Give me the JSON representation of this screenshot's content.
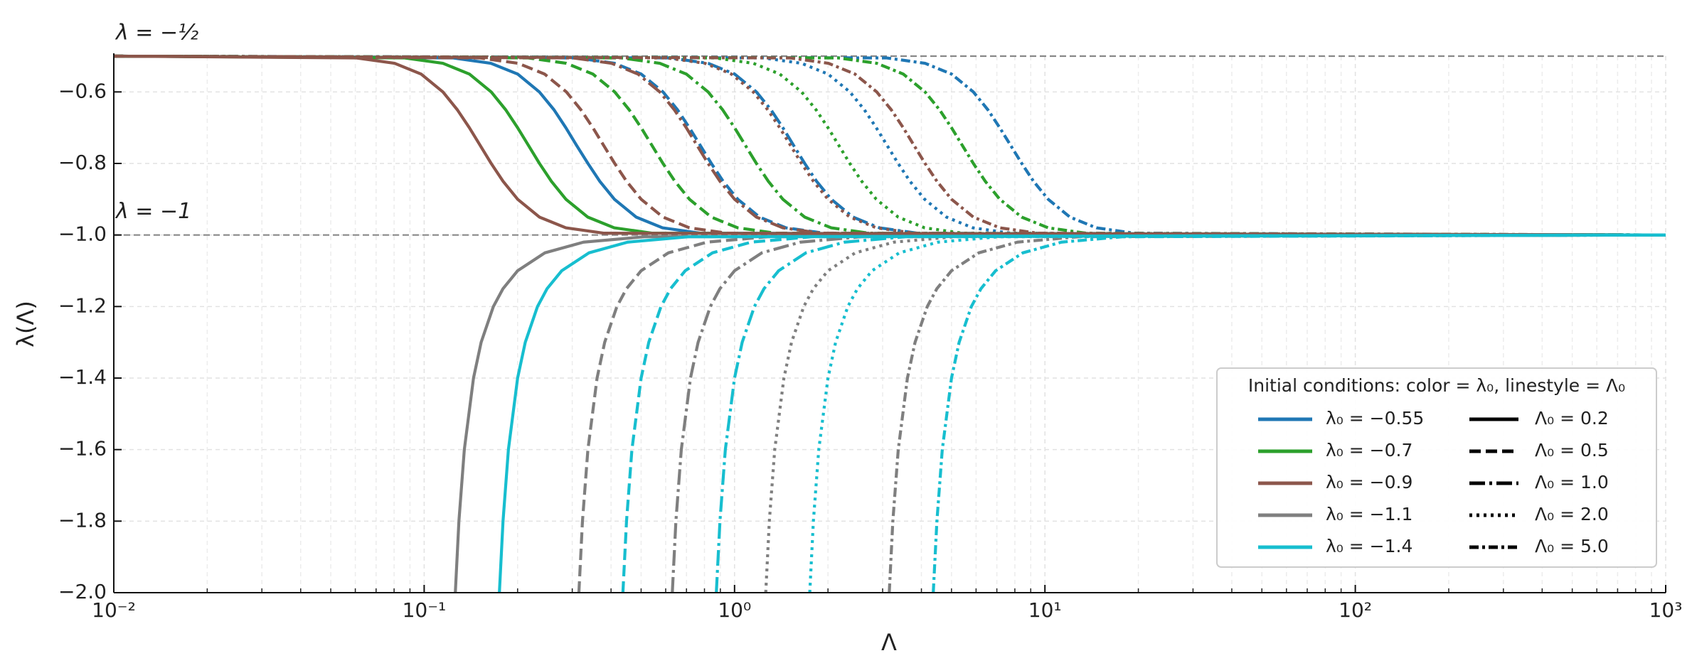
{
  "chart_data": {
    "type": "line",
    "x_label": "Λ",
    "y_label": "λ(Λ)",
    "xscale": "log",
    "xlim": [
      0.01,
      1000
    ],
    "ylim": [
      -2,
      -0.5
    ],
    "xticks": [
      {
        "value": 0.01,
        "label": "10⁻²"
      },
      {
        "value": 0.1,
        "label": "10⁻¹"
      },
      {
        "value": 1,
        "label": "10⁰"
      },
      {
        "value": 10,
        "label": "10¹"
      },
      {
        "value": 100,
        "label": "10²"
      },
      {
        "value": 1000,
        "label": "10³"
      }
    ],
    "xminorticks": [
      0.02,
      0.03,
      0.04,
      0.05,
      0.06,
      0.07,
      0.08,
      0.09,
      0.2,
      0.3,
      0.4,
      0.5,
      0.6,
      0.7,
      0.8,
      0.9,
      2,
      3,
      4,
      5,
      6,
      7,
      8,
      9,
      20,
      30,
      40,
      50,
      60,
      70,
      80,
      90,
      200,
      300,
      400,
      500,
      600,
      700,
      800,
      900
    ],
    "yticks": [
      {
        "value": -2,
        "label": "−2.0"
      },
      {
        "value": -1.8,
        "label": "−1.8"
      },
      {
        "value": -1.6,
        "label": "−1.6"
      },
      {
        "value": -1.4,
        "label": "−1.4"
      },
      {
        "value": -1.2,
        "label": "−1.2"
      },
      {
        "value": -1,
        "label": "−1.0"
      },
      {
        "value": -0.8,
        "label": "−0.8"
      },
      {
        "value": -0.6,
        "label": "−0.6"
      }
    ],
    "grid": true,
    "hlines": [
      {
        "y": -0.5,
        "label": "λ = −½"
      },
      {
        "y": -1,
        "label": "λ = −1"
      }
    ],
    "legend": {
      "loc": "lower right",
      "title": "Initial conditions: color = λ₀, linestyle = Λ₀",
      "colors": [
        {
          "label": "λ₀ = −0.55",
          "color": "#1f77b4"
        },
        {
          "label": "λ₀ = −0.7",
          "color": "#2ca02c"
        },
        {
          "label": "λ₀ = −0.9",
          "color": "#8c564b"
        },
        {
          "label": "λ₀ = −1.1",
          "color": "#7f7f7f"
        },
        {
          "label": "λ₀ = −1.4",
          "color": "#17becf"
        }
      ],
      "linestyles": [
        {
          "label": "Λ₀ = 0.2",
          "linestyle": "solid"
        },
        {
          "label": "Λ₀ = 0.5",
          "linestyle": "dashed"
        },
        {
          "label": "Λ₀ = 1.0",
          "linestyle": "longdashdot"
        },
        {
          "label": "Λ₀ = 2.0",
          "linestyle": "dotted"
        },
        {
          "label": "Λ₀ = 5.0",
          "linestyle": "dashdot"
        }
      ]
    },
    "series": [
      {
        "color": "#1f77b4",
        "linestyle": "solid",
        "x": [
          0.01,
          0.124,
          0.164,
          0.2,
          0.235,
          0.262,
          0.286,
          0.31,
          0.337,
          0.368,
          0.41,
          0.482,
          0.586,
          0.778,
          1000
        ],
        "values": [
          -0.5,
          -0.505,
          -0.52,
          -0.55,
          -0.6,
          -0.65,
          -0.7,
          -0.75,
          -0.8,
          -0.85,
          -0.9,
          -0.95,
          -0.98,
          -0.995,
          -1
        ]
      },
      {
        "color": "#1f77b4",
        "linestyle": "dashed",
        "x": [
          0.01,
          0.31,
          0.411,
          0.5,
          0.588,
          0.655,
          0.715,
          0.776,
          0.842,
          0.919,
          1.024,
          1.204,
          1.465,
          1.945,
          1000
        ],
        "values": [
          -0.5,
          -0.505,
          -0.52,
          -0.55,
          -0.6,
          -0.65,
          -0.7,
          -0.75,
          -0.8,
          -0.85,
          -0.9,
          -0.95,
          -0.98,
          -0.995,
          -1
        ]
      },
      {
        "color": "#1f77b4",
        "linestyle": "longdashdot",
        "x": [
          0.01,
          0.619,
          0.822,
          1,
          1.176,
          1.31,
          1.431,
          1.551,
          1.683,
          1.838,
          2.048,
          2.408,
          2.93,
          3.89,
          1000
        ],
        "values": [
          -0.5,
          -0.505,
          -0.52,
          -0.55,
          -0.6,
          -0.65,
          -0.7,
          -0.75,
          -0.8,
          -0.85,
          -0.9,
          -0.95,
          -0.98,
          -0.995,
          -1
        ]
      },
      {
        "color": "#1f77b4",
        "linestyle": "dotted",
        "x": [
          0.01,
          1.238,
          1.644,
          2,
          2.352,
          2.62,
          2.861,
          3.103,
          3.366,
          3.676,
          4.096,
          4.817,
          5.86,
          7.78,
          1000
        ],
        "values": [
          -0.5,
          -0.505,
          -0.52,
          -0.55,
          -0.6,
          -0.65,
          -0.7,
          -0.75,
          -0.8,
          -0.85,
          -0.9,
          -0.95,
          -0.98,
          -0.995,
          -1
        ]
      },
      {
        "color": "#1f77b4",
        "linestyle": "dashdot",
        "x": [
          0.01,
          3.095,
          4.11,
          5,
          5.88,
          6.55,
          7.15,
          7.76,
          8.42,
          9.19,
          10.24,
          12.04,
          14.65,
          19.45,
          1000
        ],
        "values": [
          -0.5,
          -0.505,
          -0.52,
          -0.55,
          -0.6,
          -0.65,
          -0.7,
          -0.75,
          -0.8,
          -0.85,
          -0.9,
          -0.95,
          -0.98,
          -0.995,
          -1
        ]
      },
      {
        "color": "#2ca02c",
        "linestyle": "solid",
        "x": [
          0.01,
          0.0865,
          0.1149,
          0.1398,
          0.1644,
          0.1831,
          0.2,
          0.2169,
          0.2352,
          0.257,
          0.2861,
          0.3366,
          0.4096,
          0.5437,
          1000
        ],
        "values": [
          -0.5,
          -0.505,
          -0.52,
          -0.55,
          -0.6,
          -0.65,
          -0.7,
          -0.75,
          -0.8,
          -0.85,
          -0.9,
          -0.95,
          -0.98,
          -0.995,
          -1
        ]
      },
      {
        "color": "#2ca02c",
        "linestyle": "dashed",
        "x": [
          0.01,
          0.2163,
          0.2872,
          0.3495,
          0.411,
          0.4577,
          0.5,
          0.5422,
          0.588,
          0.6425,
          0.7154,
          0.8415,
          1.0241,
          1.3592,
          1000
        ],
        "values": [
          -0.5,
          -0.505,
          -0.52,
          -0.55,
          -0.6,
          -0.65,
          -0.7,
          -0.75,
          -0.8,
          -0.85,
          -0.9,
          -0.95,
          -0.98,
          -0.995,
          -1
        ]
      },
      {
        "color": "#2ca02c",
        "linestyle": "longdashdot",
        "x": [
          0.01,
          0.4326,
          0.5743,
          0.699,
          0.8219,
          0.9154,
          1,
          1.0844,
          1.176,
          1.285,
          1.4307,
          1.683,
          2.0482,
          2.7183,
          1000
        ],
        "values": [
          -0.5,
          -0.505,
          -0.52,
          -0.55,
          -0.6,
          -0.65,
          -0.7,
          -0.75,
          -0.8,
          -0.85,
          -0.9,
          -0.95,
          -0.98,
          -0.995,
          -1
        ]
      },
      {
        "color": "#2ca02c",
        "linestyle": "dotted",
        "x": [
          0.01,
          0.8652,
          1.1486,
          1.398,
          1.6438,
          1.8308,
          2,
          2.1688,
          2.352,
          2.57,
          2.8614,
          3.366,
          4.0964,
          5.4366,
          1000
        ],
        "values": [
          -0.5,
          -0.505,
          -0.52,
          -0.55,
          -0.6,
          -0.65,
          -0.7,
          -0.75,
          -0.8,
          -0.85,
          -0.9,
          -0.95,
          -0.98,
          -0.995,
          -1
        ]
      },
      {
        "color": "#2ca02c",
        "linestyle": "dashdot",
        "x": [
          0.01,
          2.163,
          2.8715,
          3.495,
          4.1095,
          4.577,
          5,
          5.422,
          5.88,
          6.425,
          7.1535,
          8.415,
          10.241,
          13.592,
          1000
        ],
        "values": [
          -0.5,
          -0.505,
          -0.52,
          -0.55,
          -0.6,
          -0.65,
          -0.7,
          -0.75,
          -0.8,
          -0.85,
          -0.9,
          -0.95,
          -0.98,
          -0.995,
          -1
        ]
      },
      {
        "color": "#8c564b",
        "linestyle": "solid",
        "x": [
          0.01,
          0.0604,
          0.0803,
          0.0977,
          0.1149,
          0.1279,
          0.1398,
          0.1516,
          0.1644,
          0.1796,
          0.2,
          0.2352,
          0.2861,
          0.3799,
          1000
        ],
        "values": [
          -0.5,
          -0.505,
          -0.52,
          -0.55,
          -0.6,
          -0.65,
          -0.7,
          -0.75,
          -0.8,
          -0.85,
          -0.9,
          -0.95,
          -0.98,
          -0.995,
          -1
        ]
      },
      {
        "color": "#8c564b",
        "linestyle": "dashed",
        "x": [
          0.01,
          0.1511,
          0.2007,
          0.2442,
          0.2872,
          0.3199,
          0.3495,
          0.3789,
          0.411,
          0.449,
          0.5,
          0.588,
          0.7154,
          0.9497,
          1000
        ],
        "values": [
          -0.5,
          -0.505,
          -0.52,
          -0.55,
          -0.6,
          -0.65,
          -0.7,
          -0.75,
          -0.8,
          -0.85,
          -0.9,
          -0.95,
          -0.98,
          -0.995,
          -1
        ]
      },
      {
        "color": "#8c564b",
        "linestyle": "longdashdot",
        "x": [
          0.01,
          0.3022,
          0.4014,
          0.4883,
          0.5743,
          0.6397,
          0.699,
          0.7578,
          0.8219,
          0.8979,
          1,
          1.176,
          1.4307,
          1.8994,
          1000
        ],
        "values": [
          -0.5,
          -0.505,
          -0.52,
          -0.55,
          -0.6,
          -0.65,
          -0.7,
          -0.75,
          -0.8,
          -0.85,
          -0.9,
          -0.95,
          -0.98,
          -0.995,
          -1
        ]
      },
      {
        "color": "#8c564b",
        "linestyle": "dotted",
        "x": [
          0.01,
          0.6044,
          0.8028,
          0.9766,
          1.1486,
          1.2794,
          1.398,
          1.5156,
          1.6438,
          1.7958,
          2,
          2.352,
          2.8614,
          3.7988,
          1000
        ],
        "values": [
          -0.5,
          -0.505,
          -0.52,
          -0.55,
          -0.6,
          -0.65,
          -0.7,
          -0.75,
          -0.8,
          -0.85,
          -0.9,
          -0.95,
          -0.98,
          -0.995,
          -1
        ]
      },
      {
        "color": "#8c564b",
        "linestyle": "dashdot",
        "x": [
          0.01,
          1.511,
          2.007,
          2.4415,
          2.8715,
          3.1985,
          3.495,
          3.789,
          4.1095,
          4.4895,
          5,
          5.88,
          7.1535,
          9.497,
          1000
        ],
        "values": [
          -0.5,
          -0.505,
          -0.52,
          -0.55,
          -0.6,
          -0.65,
          -0.7,
          -0.75,
          -0.8,
          -0.85,
          -0.9,
          -0.95,
          -0.98,
          -0.995,
          -1
        ]
      },
      {
        "color": "#7f7f7f",
        "linestyle": "solid",
        "x": [
          0.126,
          0.1294,
          0.1347,
          0.1442,
          0.1526,
          0.1671,
          0.1795,
          0.2,
          0.2447,
          0.3261,
          0.5126,
          1000
        ],
        "values": [
          -2,
          -1.8,
          -1.6,
          -1.4,
          -1.3,
          -1.2,
          -1.15,
          -1.1,
          -1.05,
          -1.02,
          -1.005,
          -1
        ]
      },
      {
        "color": "#7f7f7f",
        "linestyle": "dashed",
        "x": [
          0.3151,
          0.3236,
          0.3369,
          0.3606,
          0.3816,
          0.4178,
          0.4487,
          0.5,
          0.6118,
          0.8153,
          1.2815,
          1000
        ],
        "values": [
          -2,
          -1.8,
          -1.6,
          -1.4,
          -1.3,
          -1.2,
          -1.15,
          -1.1,
          -1.05,
          -1.02,
          -1.005,
          -1
        ]
      },
      {
        "color": "#7f7f7f",
        "linestyle": "longdashdot",
        "x": [
          0.6302,
          0.6472,
          0.6737,
          0.7211,
          0.7631,
          0.8356,
          0.8973,
          1,
          1.2236,
          1.6306,
          2.5629,
          1000
        ],
        "values": [
          -2,
          -1.8,
          -1.6,
          -1.4,
          -1.3,
          -1.2,
          -1.15,
          -1.1,
          -1.05,
          -1.02,
          -1.005,
          -1
        ]
      },
      {
        "color": "#7f7f7f",
        "linestyle": "dotted",
        "x": [
          1.2604,
          1.2944,
          1.3474,
          1.4422,
          1.5262,
          1.6712,
          1.7946,
          2,
          2.4472,
          3.2612,
          5.1258,
          1000
        ],
        "values": [
          -2,
          -1.8,
          -1.6,
          -1.4,
          -1.3,
          -1.2,
          -1.15,
          -1.1,
          -1.05,
          -1.02,
          -1.005,
          -1
        ]
      },
      {
        "color": "#7f7f7f",
        "linestyle": "dashdot",
        "x": [
          3.151,
          3.236,
          3.3685,
          3.6055,
          3.8155,
          4.178,
          4.4865,
          5,
          6.118,
          8.153,
          12.815,
          1000
        ],
        "values": [
          -2,
          -1.8,
          -1.6,
          -1.4,
          -1.3,
          -1.2,
          -1.15,
          -1.1,
          -1.05,
          -1.02,
          -1.005,
          -1
        ]
      },
      {
        "color": "#17becf",
        "linestyle": "solid",
        "x": [
          0.1747,
          0.1795,
          0.1868,
          0.2,
          0.2117,
          0.2318,
          0.2489,
          0.2774,
          0.3394,
          0.4523,
          0.7108,
          1000
        ],
        "values": [
          -2,
          -1.8,
          -1.6,
          -1.4,
          -1.3,
          -1.2,
          -1.15,
          -1.1,
          -1.05,
          -1.02,
          -1.005,
          -1
        ]
      },
      {
        "color": "#17becf",
        "linestyle": "dashed",
        "x": [
          0.4368,
          0.4487,
          0.467,
          0.5,
          0.5292,
          0.5794,
          0.6223,
          0.6934,
          0.8485,
          1.1308,
          1.777,
          1000
        ],
        "values": [
          -2,
          -1.8,
          -1.6,
          -1.4,
          -1.3,
          -1.2,
          -1.15,
          -1.1,
          -1.05,
          -1.02,
          -1.005,
          -1
        ]
      },
      {
        "color": "#17becf",
        "linestyle": "longdashdot",
        "x": [
          0.8735,
          0.8974,
          0.9339,
          1,
          1.0583,
          1.1588,
          1.2445,
          1.3868,
          1.6969,
          2.2615,
          3.5539,
          1000
        ],
        "values": [
          -2,
          -1.8,
          -1.6,
          -1.4,
          -1.3,
          -1.2,
          -1.15,
          -1.1,
          -1.05,
          -1.02,
          -1.005,
          -1
        ]
      },
      {
        "color": "#17becf",
        "linestyle": "dotted",
        "x": [
          1.747,
          1.7948,
          1.8678,
          2,
          2.1166,
          2.3176,
          2.489,
          2.7736,
          3.3938,
          4.523,
          7.1078,
          1000
        ],
        "values": [
          -2,
          -1.8,
          -1.6,
          -1.4,
          -1.3,
          -1.2,
          -1.15,
          -1.1,
          -1.05,
          -1.02,
          -1.005,
          -1
        ]
      },
      {
        "color": "#17becf",
        "linestyle": "dashdot",
        "x": [
          4.3675,
          4.487,
          4.6695,
          5,
          5.2915,
          5.794,
          6.2225,
          6.934,
          8.4845,
          11.3075,
          17.7695,
          1000
        ],
        "values": [
          -2,
          -1.8,
          -1.6,
          -1.4,
          -1.3,
          -1.2,
          -1.15,
          -1.1,
          -1.05,
          -1.02,
          -1.005,
          -1
        ]
      }
    ]
  }
}
